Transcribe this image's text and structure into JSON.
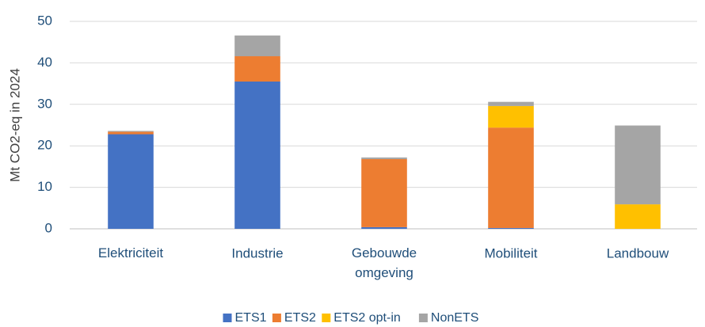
{
  "chart_data": {
    "type": "stacked_bar",
    "y_label": "Mt CO2-eq in 2024",
    "categories": [
      "Elektriciteit",
      "Industrie",
      "Gebouwde omgeving",
      "Mobiliteit",
      "Landbouw"
    ],
    "series": [
      {
        "name": "ETS1",
        "color": "#4472c4",
        "values": [
          22.8,
          35.5,
          0.4,
          0.2,
          0
        ]
      },
      {
        "name": "ETS2",
        "color": "#ed7d31",
        "values": [
          0.6,
          6.1,
          16.4,
          24.2,
          0
        ]
      },
      {
        "name": "ETS2 opt-in",
        "color": "#ffc000",
        "values": [
          0,
          0,
          0,
          5.2,
          5.9
        ]
      },
      {
        "name": "NonETS",
        "color": "#a5a5a5",
        "values": [
          0.2,
          5.0,
          0.4,
          1.0,
          19.0
        ]
      }
    ],
    "ylim": [
      0,
      50
    ],
    "yticks": [
      0,
      10,
      20,
      30,
      40,
      50
    ],
    "grid": true,
    "legend": "bottom"
  }
}
